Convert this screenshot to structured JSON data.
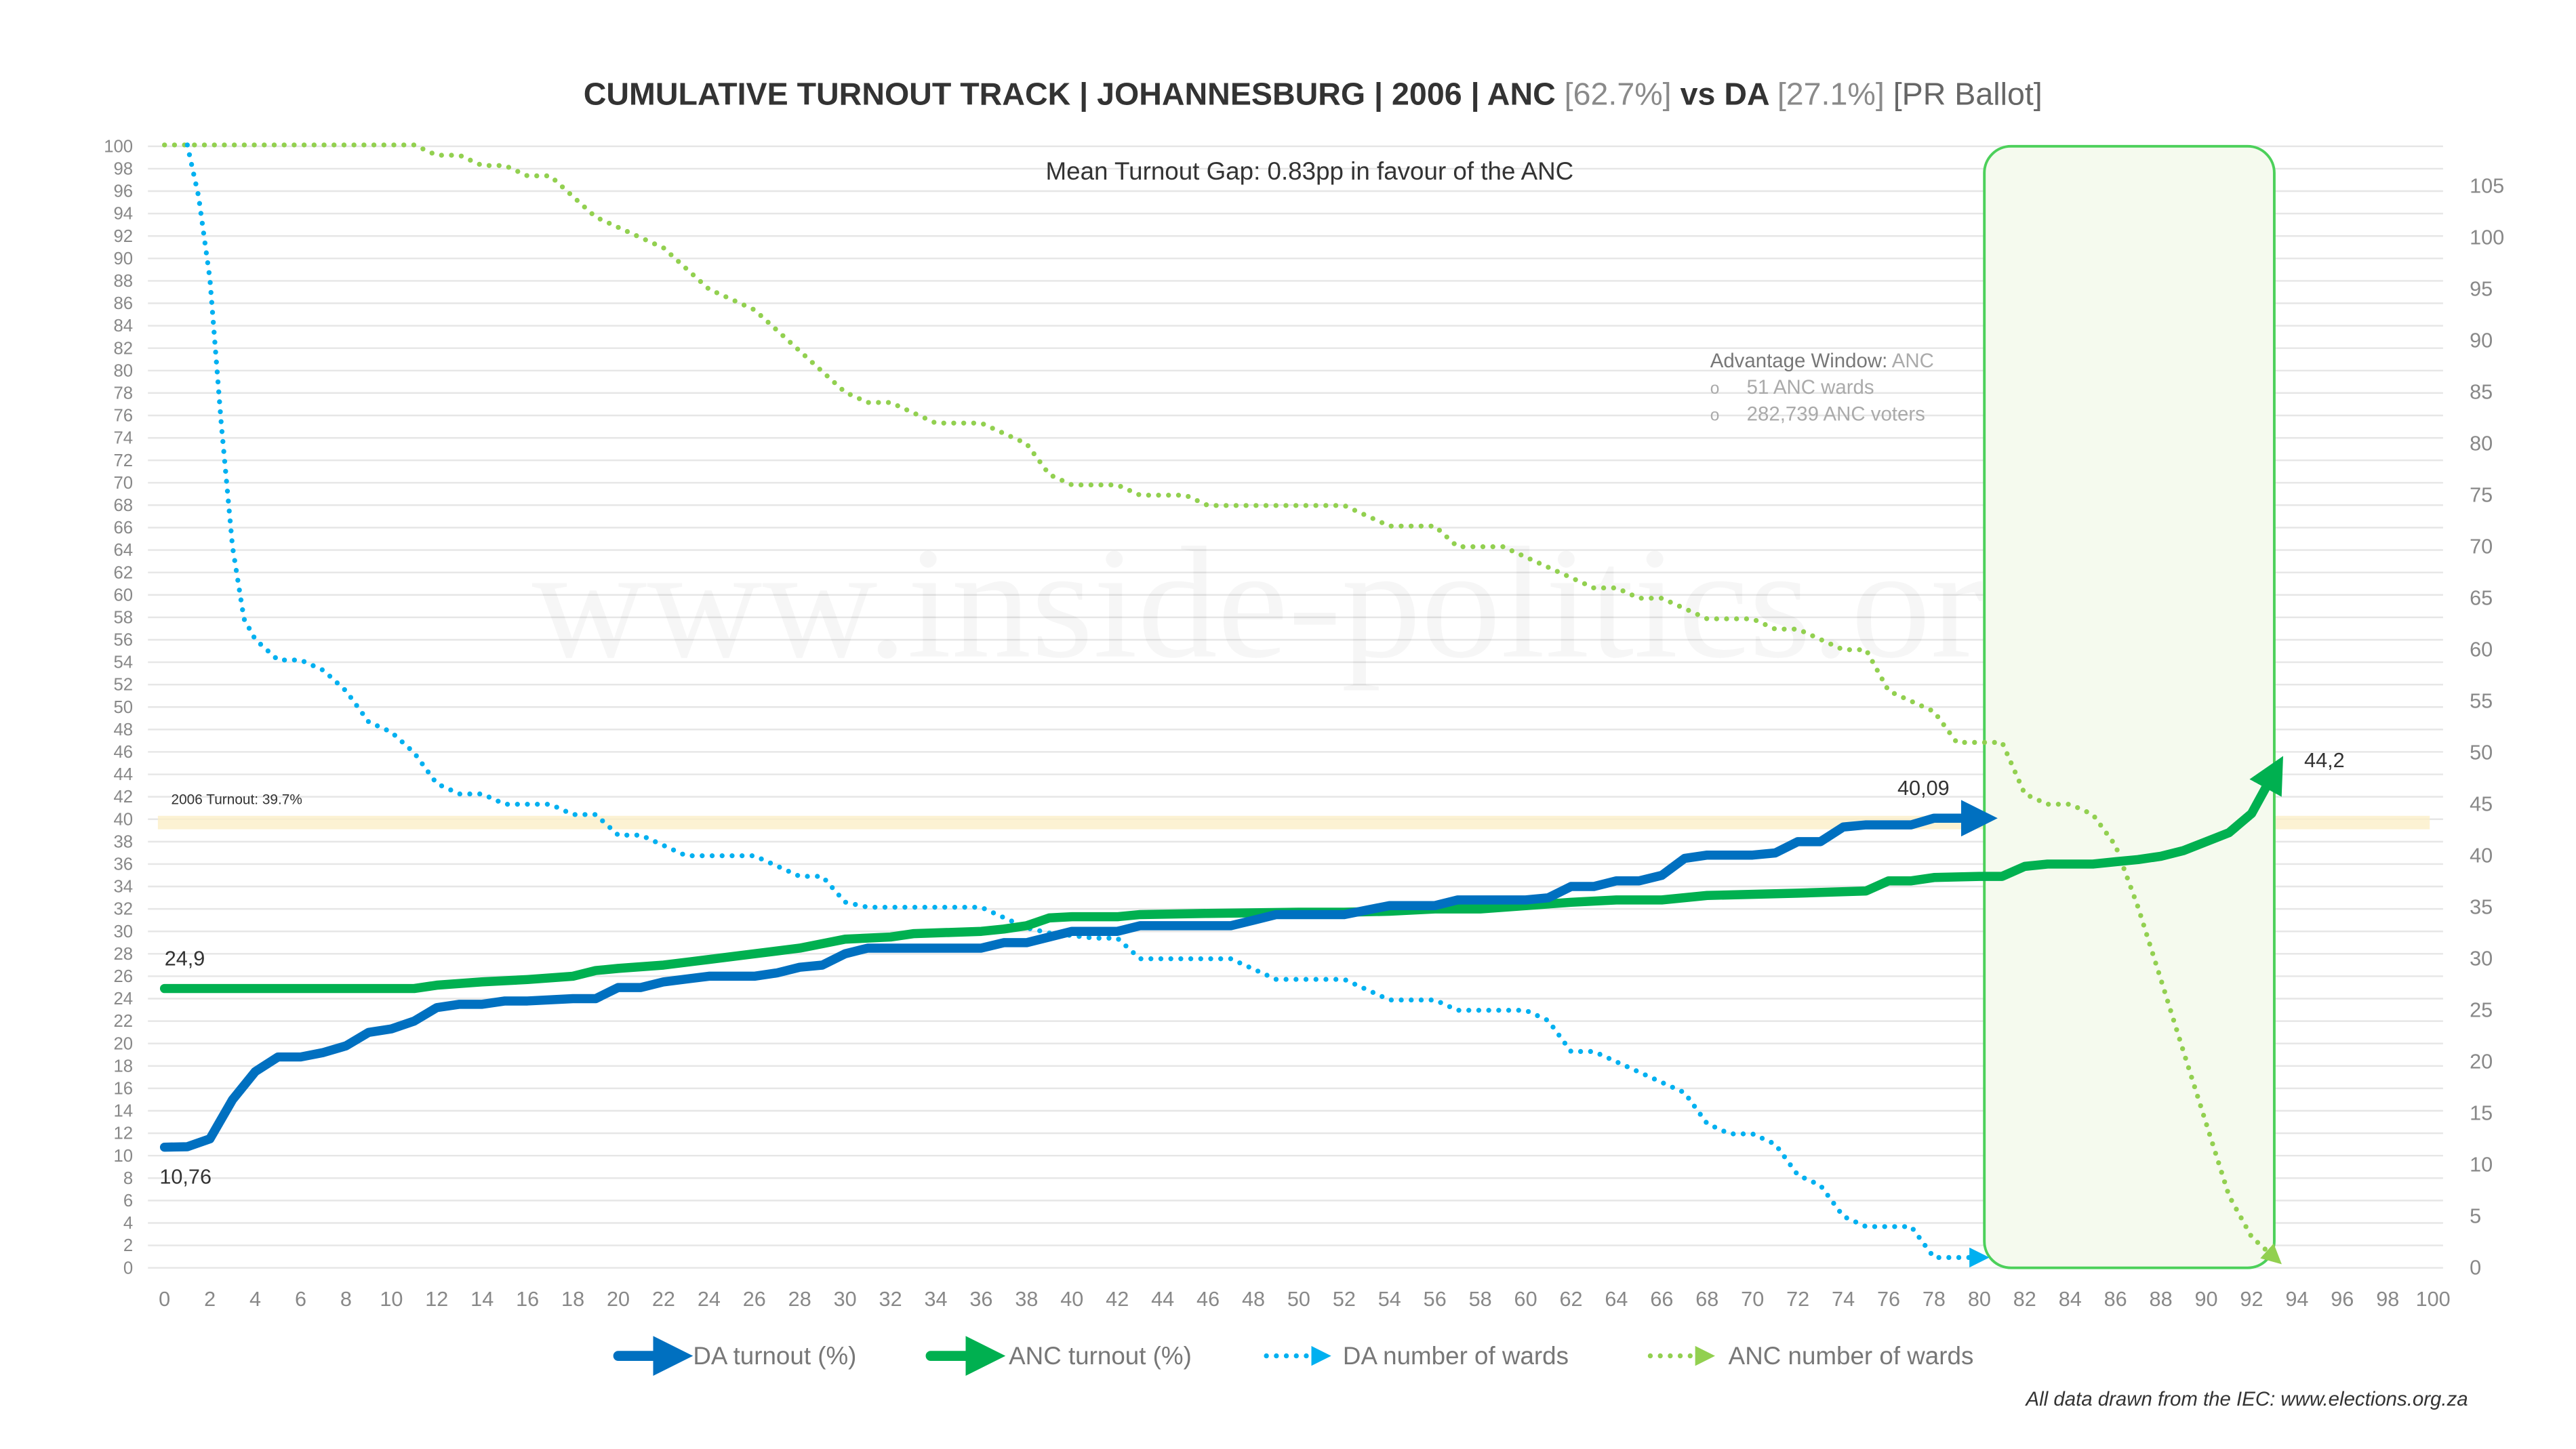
{
  "title": {
    "part1": "CUMULATIVE TURNOUT TRACK | JOHANNESBURG | 2006 | ANC ",
    "anc_pct": "[62.7%]",
    "part2": " vs DA ",
    "da_pct": "[27.1%]",
    "part3": " [PR Ballot]"
  },
  "subtitle": "Mean Turnout Gap: 0.83pp in favour of the ANC",
  "watermark": "www.inside-politics.org",
  "advantage": {
    "heading": "Advantage Window:",
    "party": " ANC",
    "bullet": "o",
    "items": [
      "51 ANC wards",
      "282,739 ANC voters"
    ]
  },
  "turnout_label": "2006 Turnout: 39.7%",
  "source": "All data drawn from the IEC: www.elections.org.za",
  "colors": {
    "da": "#0070C0",
    "anc": "#00B050",
    "da_wards": "#00B0F0",
    "anc_wards": "#92D050",
    "window": "#4CD05A",
    "turnout_band": "#FBEFC8"
  },
  "chart_data": {
    "type": "line",
    "title": "CUMULATIVE TURNOUT TRACK | JOHANNESBURG | 2006 | ANC [62.7%] vs DA [27.1%] [PR Ballot]",
    "xlim": [
      0,
      100
    ],
    "ylim_left": [
      0,
      100
    ],
    "ylim_right": [
      0,
      109
    ],
    "x_ticks": [
      0,
      2,
      4,
      6,
      8,
      10,
      12,
      14,
      16,
      18,
      20,
      22,
      24,
      26,
      28,
      30,
      32,
      34,
      36,
      38,
      40,
      42,
      44,
      46,
      48,
      50,
      52,
      54,
      56,
      58,
      60,
      62,
      64,
      66,
      68,
      70,
      72,
      74,
      76,
      78,
      80,
      82,
      84,
      86,
      88,
      90,
      92,
      94,
      96,
      98,
      100
    ],
    "y_left_ticks": [
      0,
      2,
      4,
      6,
      8,
      10,
      12,
      14,
      16,
      18,
      20,
      22,
      24,
      26,
      28,
      30,
      32,
      34,
      36,
      38,
      40,
      42,
      44,
      46,
      48,
      50,
      52,
      54,
      56,
      58,
      60,
      62,
      64,
      66,
      68,
      70,
      72,
      74,
      76,
      78,
      80,
      82,
      84,
      86,
      88,
      90,
      92,
      94,
      96,
      98,
      100
    ],
    "y_right_ticks": [
      0,
      5,
      10,
      15,
      20,
      25,
      30,
      35,
      40,
      45,
      50,
      55,
      60,
      65,
      70,
      75,
      80,
      85,
      90,
      95,
      100,
      105
    ],
    "reference_line": {
      "label": "2006 Turnout: 39.7%",
      "value": 39.7
    },
    "advantage_window": {
      "x": [
        80,
        93
      ],
      "party": "ANC"
    },
    "legend": [
      "DA turnout (%)",
      "ANC turnout (%)",
      "DA number of wards",
      "ANC number of wards"
    ],
    "legend_position": "bottom",
    "annotations": [
      {
        "series": "DA turnout (%)",
        "text": "10,76",
        "x": 0,
        "y": 10.76,
        "pos": "below"
      },
      {
        "series": "ANC turnout (%)",
        "text": "24,9",
        "x": 0,
        "y": 24.9,
        "pos": "above"
      },
      {
        "series": "DA turnout (%)",
        "text": "40,09",
        "x": 78,
        "y": 40.09,
        "pos": "above"
      },
      {
        "series": "ANC turnout (%)",
        "text": "44,2",
        "x": 93,
        "y": 44.2,
        "pos": "right"
      }
    ],
    "series": [
      {
        "name": "DA turnout (%)",
        "axis": "left",
        "style": "solid",
        "color": "#0070C0",
        "x": [
          0,
          1,
          2,
          3,
          4,
          5,
          6,
          7,
          8,
          9,
          10,
          11,
          12,
          13,
          14,
          15,
          16,
          18,
          19,
          20,
          21,
          22,
          24,
          26,
          27,
          28,
          29,
          30,
          31,
          32,
          34,
          36,
          37,
          38,
          39,
          40,
          41,
          42,
          43,
          44,
          46,
          47,
          48,
          49,
          50,
          52,
          54,
          55,
          56,
          57,
          58,
          60,
          61,
          62,
          63,
          64,
          65,
          66,
          67,
          68,
          70,
          71,
          72,
          73,
          74,
          75,
          76,
          77,
          78,
          79,
          80
        ],
        "y": [
          10.76,
          10.8,
          11.5,
          15,
          17.5,
          18.8,
          18.8,
          19.2,
          19.8,
          21,
          21.3,
          22,
          23.2,
          23.5,
          23.5,
          23.8,
          23.8,
          24,
          24,
          25,
          25,
          25.5,
          26,
          26,
          26.3,
          26.8,
          27,
          28,
          28.5,
          28.5,
          28.5,
          28.5,
          29,
          29,
          29.5,
          30,
          30,
          30,
          30.5,
          30.5,
          30.5,
          30.5,
          31,
          31.5,
          31.5,
          31.5,
          32.3,
          32.3,
          32.3,
          32.8,
          32.8,
          32.8,
          33,
          34,
          34,
          34.5,
          34.5,
          35,
          36.5,
          36.8,
          36.8,
          37,
          38,
          38,
          39.3,
          39.5,
          39.5,
          39.5,
          40.09,
          40.09,
          40.09
        ]
      },
      {
        "name": "ANC turnout (%)",
        "axis": "left",
        "style": "solid",
        "color": "#00B050",
        "x": [
          0,
          11,
          12,
          14,
          16,
          18,
          19,
          20,
          22,
          24,
          26,
          28,
          30,
          32,
          33,
          36,
          37,
          38,
          39,
          40,
          42,
          43,
          46,
          50,
          52,
          54,
          56,
          58,
          60,
          62,
          64,
          66,
          68,
          72,
          75,
          76,
          77,
          78,
          80,
          81,
          82,
          83,
          85,
          86,
          87,
          88,
          89,
          90,
          91,
          92,
          93
        ],
        "y": [
          24.9,
          24.9,
          25.2,
          25.5,
          25.7,
          26,
          26.5,
          26.7,
          27,
          27.5,
          28,
          28.5,
          29.3,
          29.5,
          29.8,
          30,
          30.2,
          30.5,
          31.2,
          31.3,
          31.3,
          31.5,
          31.6,
          31.7,
          31.7,
          31.8,
          32,
          32,
          32.3,
          32.6,
          32.8,
          32.8,
          33.2,
          33.4,
          33.6,
          34.5,
          34.5,
          34.8,
          34.9,
          34.9,
          35.8,
          36,
          36,
          36.2,
          36.4,
          36.7,
          37.2,
          38,
          38.8,
          40.5,
          44.2
        ]
      },
      {
        "name": "DA number of wards",
        "axis": "right",
        "style": "dotted",
        "color": "#00B0F0",
        "x": [
          1,
          1.5,
          2,
          2.5,
          3,
          3.5,
          4,
          5,
          6,
          7,
          8,
          9,
          10,
          11,
          12,
          13,
          14,
          15,
          16,
          17,
          18,
          19,
          20,
          21,
          22,
          23,
          24,
          26,
          27,
          28,
          29,
          30,
          31,
          36,
          37,
          38,
          39,
          41,
          42,
          43,
          44,
          47,
          48,
          49,
          52,
          53,
          54,
          56,
          57,
          60,
          61,
          62,
          63,
          64,
          65,
          66,
          67,
          68,
          69,
          70,
          71,
          72,
          73,
          74,
          75,
          76,
          77,
          78,
          79,
          80
        ],
        "y": [
          109,
          104,
          96,
          82,
          70,
          63,
          61,
          59,
          59,
          58,
          56,
          53,
          52,
          50,
          47,
          46,
          46,
          45,
          45,
          45,
          44,
          44,
          42,
          42,
          41,
          40,
          40,
          40,
          39,
          38,
          38,
          35.5,
          35,
          35,
          34,
          33,
          32.5,
          32,
          32,
          30,
          30,
          30,
          29,
          28,
          28,
          27,
          26,
          26,
          25,
          25,
          24,
          21,
          21,
          20,
          19,
          18,
          17,
          14,
          13,
          13,
          12,
          9,
          8,
          5,
          4,
          4,
          4,
          1,
          1,
          1
        ]
      },
      {
        "name": "ANC number of wards",
        "axis": "right",
        "style": "dotted",
        "color": "#92D050",
        "x": [
          0,
          11,
          12,
          13,
          14,
          15,
          16,
          17,
          18,
          19,
          20,
          21,
          22,
          23,
          24,
          25,
          26,
          27,
          28,
          29,
          30,
          31,
          32,
          33,
          34,
          36,
          37,
          38,
          39,
          40,
          42,
          43,
          44,
          45,
          46,
          52,
          53,
          54,
          55,
          56,
          57,
          59,
          60,
          61,
          62,
          63,
          64,
          65,
          66,
          67,
          68,
          70,
          71,
          72,
          73,
          74,
          75,
          76,
          77,
          78,
          79,
          80,
          81,
          82,
          83,
          84,
          85,
          86,
          87,
          88,
          89,
          90,
          91,
          92,
          93
        ],
        "y": [
          109,
          109,
          108,
          108,
          107,
          107,
          106,
          106,
          104,
          102,
          101,
          100,
          99,
          97,
          95,
          94,
          93,
          91,
          89,
          87,
          85,
          84,
          84,
          83,
          82,
          82,
          81,
          80,
          77,
          76,
          76,
          75,
          75,
          75,
          74,
          74,
          73,
          72,
          72,
          72,
          70,
          70,
          69,
          68,
          67,
          66,
          66,
          65,
          65,
          64,
          63,
          63,
          62,
          62,
          61,
          60,
          60,
          56,
          55,
          54,
          51,
          51,
          51,
          46,
          45,
          45,
          44,
          41,
          35,
          28,
          21,
          14,
          7,
          3,
          1
        ]
      }
    ]
  }
}
